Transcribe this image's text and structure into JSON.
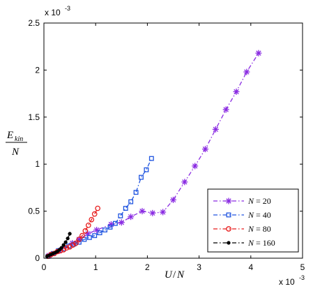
{
  "chart_data": {
    "type": "line",
    "title": "",
    "xlabel": {
      "main": "U",
      "sep": "/",
      "den": "N"
    },
    "ylabel": {
      "main": "E",
      "sub": "kin",
      "den": "N"
    },
    "x_multiplier": "x 10",
    "y_multiplier": "x 10",
    "multiplier_exp": "-3",
    "xlim": [
      0,
      5
    ],
    "ylim": [
      0,
      2.5
    ],
    "xticks": [
      0,
      1,
      2,
      3,
      4,
      5
    ],
    "yticks": [
      0,
      0.5,
      1,
      1.5,
      2,
      2.5
    ],
    "xtick_labels": [
      "0",
      "1",
      "2",
      "3",
      "4",
      "5"
    ],
    "ytick_labels": [
      "0",
      "0.5",
      "1",
      "1.5",
      "2",
      "2.5"
    ],
    "grid": false,
    "legend_position": "bottom-right",
    "series": [
      {
        "name": "N = 20",
        "legend_main": "N",
        "legend_eq": " = ",
        "legend_val": "20",
        "color": "#8a2be2",
        "marker": "asterisk",
        "line": "dashdot",
        "x": [
          0.1,
          0.3,
          0.55,
          0.68,
          0.85,
          1.02,
          1.3,
          1.5,
          1.68,
          1.9,
          2.1,
          2.3,
          2.5,
          2.72,
          2.92,
          3.12,
          3.32,
          3.52,
          3.72,
          3.92,
          4.15
        ],
        "y": [
          0.03,
          0.08,
          0.16,
          0.2,
          0.26,
          0.3,
          0.36,
          0.38,
          0.44,
          0.5,
          0.48,
          0.49,
          0.62,
          0.81,
          0.98,
          1.16,
          1.37,
          1.58,
          1.77,
          1.98,
          2.18
        ]
      },
      {
        "name": "N = 40",
        "legend_main": "N",
        "legend_eq": " = ",
        "legend_val": "40",
        "color": "#2055e0",
        "marker": "square",
        "line": "dashdot",
        "x": [
          0.08,
          0.18,
          0.28,
          0.38,
          0.48,
          0.58,
          0.68,
          0.78,
          0.88,
          0.98,
          1.08,
          1.18,
          1.28,
          1.38,
          1.48,
          1.58,
          1.68,
          1.78,
          1.88,
          1.98,
          2.08
        ],
        "y": [
          0.02,
          0.05,
          0.08,
          0.1,
          0.13,
          0.15,
          0.17,
          0.2,
          0.22,
          0.24,
          0.27,
          0.3,
          0.33,
          0.37,
          0.45,
          0.53,
          0.6,
          0.7,
          0.86,
          0.94,
          1.06
        ]
      },
      {
        "name": "N = 80",
        "legend_main": "N",
        "legend_eq": " = ",
        "legend_val": "80",
        "color": "#e81c1c",
        "marker": "circle",
        "line": "dashdot",
        "x": [
          0.08,
          0.14,
          0.2,
          0.26,
          0.32,
          0.38,
          0.44,
          0.5,
          0.56,
          0.62,
          0.68,
          0.74,
          0.8,
          0.86,
          0.92,
          0.98,
          1.04
        ],
        "y": [
          0.02,
          0.04,
          0.05,
          0.07,
          0.08,
          0.09,
          0.11,
          0.12,
          0.14,
          0.16,
          0.2,
          0.24,
          0.29,
          0.35,
          0.41,
          0.47,
          0.53
        ]
      },
      {
        "name": "N = 160",
        "legend_main": "N",
        "legend_eq": " = ",
        "legend_val": "160",
        "color": "#000000",
        "marker": "dot",
        "line": "dashdot",
        "x": [
          0.06,
          0.1,
          0.14,
          0.18,
          0.22,
          0.26,
          0.3,
          0.34,
          0.38,
          0.42,
          0.46,
          0.5
        ],
        "y": [
          0.02,
          0.03,
          0.04,
          0.05,
          0.06,
          0.07,
          0.09,
          0.11,
          0.14,
          0.17,
          0.21,
          0.26
        ]
      }
    ]
  }
}
